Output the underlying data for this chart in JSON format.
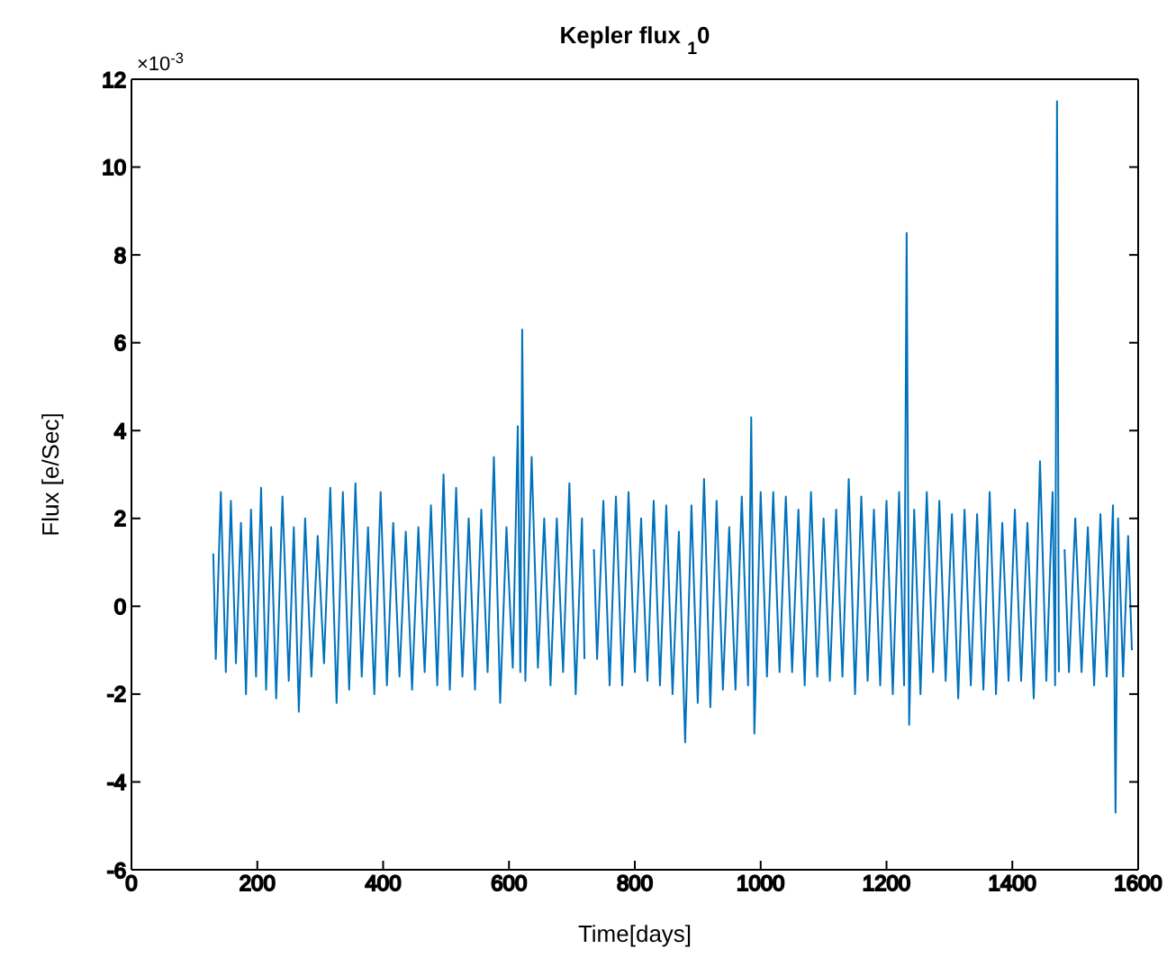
{
  "chart_data": {
    "type": "line",
    "title": "Kepler flux $_{1}$0",
    "xlabel": "Time[days]",
    "ylabel": "Flux [e/Sec]",
    "annotations": [
      "×10$^{-3}$"
    ],
    "xlim": [
      0,
      1600
    ],
    "xticks": [
      0,
      200,
      400,
      600,
      800,
      1000,
      1200,
      1400,
      1600
    ],
    "ylim": [
      -6,
      12
    ],
    "yticks": [
      -6,
      -4,
      -2,
      0,
      2,
      4,
      6,
      8,
      10,
      12
    ],
    "grid": false,
    "legend": false,
    "marker": "none",
    "line_style": "solid",
    "series": [
      {
        "color": "#0072bd",
        "x": [
          130,
          134,
          142,
          150,
          158,
          166,
          174,
          182,
          190,
          198,
          206,
          214,
          222,
          230,
          240,
          250,
          258,
          266,
          276,
          286,
          296,
          306,
          316,
          326,
          336,
          346,
          356,
          366,
          376,
          386,
          396,
          406,
          416,
          426,
          436,
          446,
          456,
          466,
          476,
          486,
          496,
          506,
          516,
          526,
          536,
          546,
          556,
          566,
          576,
          586,
          596,
          606,
          614,
          618,
          621,
          626,
          636,
          646,
          656,
          666,
          676,
          686,
          696,
          706,
          716,
          720,
          725,
          735,
          740,
          750,
          760,
          770,
          780,
          790,
          800,
          810,
          820,
          830,
          840,
          850,
          860,
          870,
          880,
          890,
          900,
          910,
          920,
          930,
          940,
          950,
          960,
          970,
          980,
          985,
          990,
          1000,
          1010,
          1020,
          1030,
          1040,
          1050,
          1060,
          1070,
          1080,
          1090,
          1100,
          1110,
          1120,
          1130,
          1140,
          1150,
          1160,
          1170,
          1180,
          1190,
          1200,
          1210,
          1220,
          1228,
          1232,
          1236,
          1244,
          1254,
          1264,
          1274,
          1284,
          1294,
          1304,
          1314,
          1324,
          1334,
          1344,
          1354,
          1364,
          1374,
          1384,
          1394,
          1404,
          1414,
          1424,
          1434,
          1444,
          1454,
          1464,
          1468,
          1471,
          1474,
          1477,
          1483,
          1490,
          1500,
          1510,
          1520,
          1530,
          1540,
          1550,
          1560,
          1564,
          1568,
          1576,
          1584,
          1590
        ],
        "values": [
          1.2,
          -1.2,
          2.6,
          -1.5,
          2.4,
          -1.3,
          1.9,
          -2.0,
          2.2,
          -1.6,
          2.7,
          -1.9,
          1.8,
          -2.1,
          2.5,
          -1.7,
          1.8,
          -2.4,
          2.0,
          -1.6,
          1.6,
          -1.3,
          2.7,
          -2.2,
          2.6,
          -1.9,
          2.8,
          -1.6,
          1.8,
          -2.0,
          2.6,
          -1.8,
          1.9,
          -1.6,
          1.7,
          -1.9,
          1.8,
          -1.5,
          2.3,
          -1.8,
          3.0,
          -1.9,
          2.7,
          -1.6,
          2.0,
          -1.9,
          2.2,
          -1.5,
          3.4,
          -2.2,
          1.8,
          -1.4,
          4.1,
          -1.5,
          6.3,
          -1.7,
          3.4,
          -1.4,
          2.0,
          -1.8,
          2.0,
          -1.5,
          2.8,
          -2.0,
          2.0,
          -1.2,
          null,
          1.3,
          -1.2,
          2.4,
          -1.8,
          2.5,
          -1.8,
          2.6,
          -1.5,
          2.0,
          -1.7,
          2.4,
          -1.8,
          2.3,
          -2.0,
          1.7,
          -3.1,
          2.3,
          -2.2,
          2.9,
          -2.3,
          2.4,
          -1.9,
          1.8,
          -1.9,
          2.5,
          -1.8,
          4.3,
          -2.9,
          2.6,
          -1.6,
          2.6,
          -1.5,
          2.5,
          -1.5,
          2.2,
          -1.8,
          2.6,
          -1.6,
          2.0,
          -1.7,
          2.2,
          -1.6,
          2.9,
          -2.0,
          2.5,
          -1.7,
          2.2,
          -1.8,
          2.4,
          -2.0,
          2.6,
          -1.8,
          8.5,
          -2.7,
          2.2,
          -2.0,
          2.6,
          -1.5,
          2.4,
          -1.7,
          2.1,
          -2.1,
          2.2,
          -1.8,
          2.1,
          -1.9,
          2.6,
          -2.0,
          1.9,
          -1.7,
          2.2,
          -1.7,
          1.9,
          -2.1,
          3.3,
          -1.7,
          2.6,
          -1.8,
          11.5,
          -1.5,
          null,
          1.3,
          -1.5,
          2.0,
          -1.5,
          1.8,
          -1.8,
          2.1,
          -1.6,
          2.3,
          -4.7,
          2.0,
          -1.6,
          1.6,
          -1.0
        ]
      }
    ]
  }
}
